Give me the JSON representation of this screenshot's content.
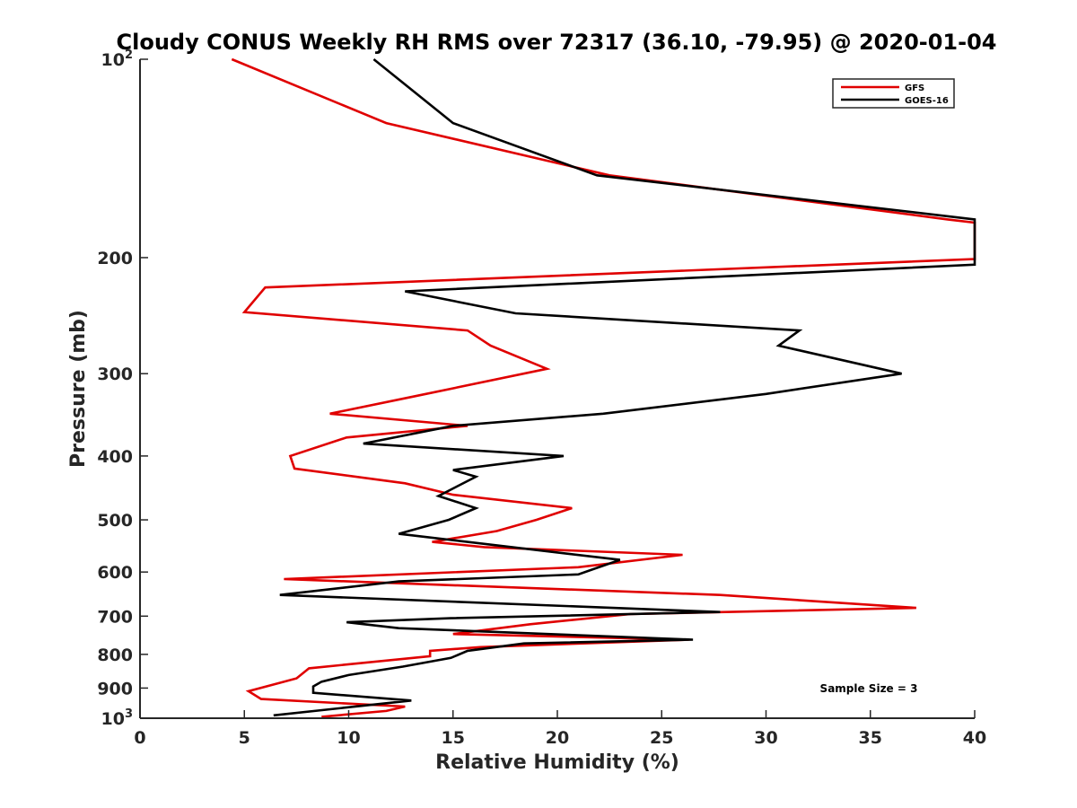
{
  "chart_data": {
    "type": "line",
    "title": "Cloudy CONUS Weekly RH RMS over 72317 (36.10, -79.95) @ 2020-01-04",
    "xlabel": "Relative Humidity (%)",
    "ylabel": "Pressure (mb)",
    "xlim": [
      0,
      40
    ],
    "ylim": [
      100,
      1000
    ],
    "y_scale": "log",
    "y_reversed": true,
    "x_ticks": [
      0,
      5,
      10,
      15,
      20,
      25,
      30,
      35,
      40
    ],
    "y_ticks": [
      {
        "value": 100,
        "label": "10",
        "sup": "2"
      },
      {
        "value": 200,
        "label": "200"
      },
      {
        "value": 300,
        "label": "300"
      },
      {
        "value": 400,
        "label": "400"
      },
      {
        "value": 500,
        "label": "500"
      },
      {
        "value": 600,
        "label": "600"
      },
      {
        "value": 700,
        "label": "700"
      },
      {
        "value": 800,
        "label": "800"
      },
      {
        "value": 900,
        "label": "900"
      },
      {
        "value": 1000,
        "label": "10",
        "sup": "3"
      }
    ],
    "grid": false,
    "legend_position": "top-right",
    "annotation": "Sample Size = 3",
    "series": [
      {
        "name": "GFS",
        "color": "#e00000",
        "points": [
          [
            4.4,
            100
          ],
          [
            11.8,
            125
          ],
          [
            22.5,
            150
          ],
          [
            38.7,
            175
          ],
          [
            40,
            177
          ],
          [
            40,
            201
          ],
          [
            6.0,
            222
          ],
          [
            5.0,
            242
          ],
          [
            15.7,
            258
          ],
          [
            16.8,
            272
          ],
          [
            19.5,
            295
          ],
          [
            13.1,
            325
          ],
          [
            9.1,
            345
          ],
          [
            15.7,
            360
          ],
          [
            9.9,
            375
          ],
          [
            7.2,
            400
          ],
          [
            7.4,
            418
          ],
          [
            12.7,
            440
          ],
          [
            15.0,
            458
          ],
          [
            20.7,
            480
          ],
          [
            19.0,
            500
          ],
          [
            17.1,
            520
          ],
          [
            14.0,
            540
          ],
          [
            16.5,
            550
          ],
          [
            26.0,
            565
          ],
          [
            21.0,
            590
          ],
          [
            6.9,
            615
          ],
          [
            27.8,
            650
          ],
          [
            37.2,
            680
          ],
          [
            23.5,
            695
          ],
          [
            18.7,
            720
          ],
          [
            15.0,
            745
          ],
          [
            26.3,
            760
          ],
          [
            16.3,
            780
          ],
          [
            13.9,
            790
          ],
          [
            13.9,
            805
          ],
          [
            8.1,
            840
          ],
          [
            7.5,
            870
          ],
          [
            5.2,
            910
          ],
          [
            5.8,
            935
          ],
          [
            12.7,
            960
          ],
          [
            11.8,
            975
          ],
          [
            8.7,
            995
          ]
        ]
      },
      {
        "name": "GOES-16",
        "color": "#000000",
        "points": [
          [
            11.2,
            100
          ],
          [
            15.0,
            125
          ],
          [
            21.9,
            150
          ],
          [
            40,
            175
          ],
          [
            40,
            205
          ],
          [
            12.7,
            225
          ],
          [
            18.0,
            243
          ],
          [
            31.6,
            258
          ],
          [
            30.6,
            272
          ],
          [
            36.5,
            300
          ],
          [
            30.0,
            322
          ],
          [
            22.2,
            345
          ],
          [
            15.0,
            360
          ],
          [
            10.7,
            383
          ],
          [
            20.3,
            400
          ],
          [
            15.0,
            420
          ],
          [
            16.1,
            430
          ],
          [
            14.3,
            460
          ],
          [
            16.1,
            480
          ],
          [
            14.8,
            500
          ],
          [
            12.4,
            525
          ],
          [
            23.0,
            575
          ],
          [
            21.0,
            605
          ],
          [
            12.4,
            620
          ],
          [
            6.7,
            650
          ],
          [
            27.8,
            690
          ],
          [
            14.9,
            705
          ],
          [
            9.9,
            715
          ],
          [
            12.4,
            730
          ],
          [
            26.5,
            760
          ],
          [
            18.4,
            770
          ],
          [
            15.7,
            790
          ],
          [
            14.9,
            810
          ],
          [
            12.6,
            835
          ],
          [
            10.0,
            860
          ],
          [
            8.7,
            880
          ],
          [
            8.3,
            895
          ],
          [
            8.3,
            915
          ],
          [
            13.0,
            940
          ],
          [
            6.4,
            990
          ]
        ]
      }
    ]
  }
}
